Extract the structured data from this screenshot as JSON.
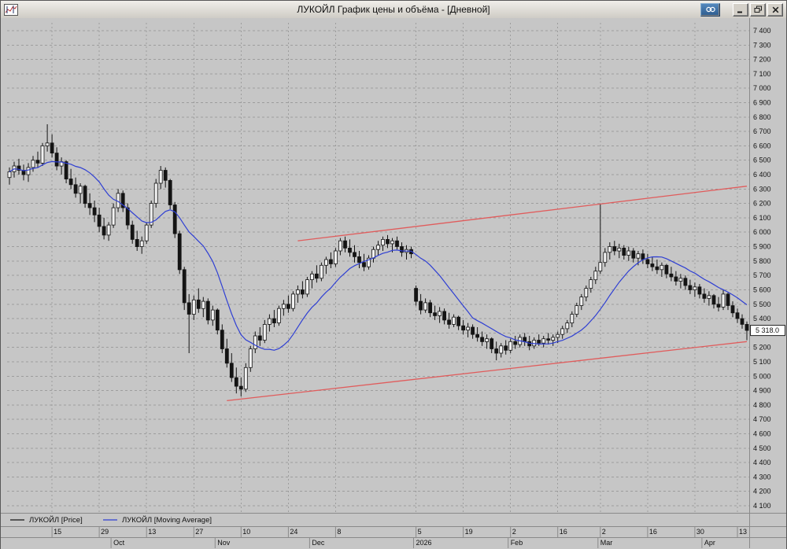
{
  "window": {
    "title": "ЛУКОЙЛ График цены и объёма - [Дневной]"
  },
  "icons": {
    "app": "mini-chart-icon",
    "link": "chain-link-icon",
    "minimize": "minimize-bar-icon",
    "restore": "overlapping-windows-icon",
    "close": "x-cross-icon"
  },
  "legend": {
    "price_label": "ЛУКОЙЛ [Price]",
    "ma_label": "ЛУКОЙЛ [Moving Average]"
  },
  "colors": {
    "chart_bg": "#c6c6c6",
    "grid": "#9d9d9d",
    "candle_up": "#f2f2f2",
    "candle_down": "#141414",
    "ma_line": "#2f3fd3",
    "trendline": "#e05c5c",
    "badge_bg": "#ffffff"
  },
  "chart_data": {
    "type": "candlestick",
    "title": "ЛУКОЙЛ График цены и объёма - [Дневной]",
    "symbol": "ЛУКОЙЛ",
    "timeframe": "Дневной",
    "grid": true,
    "legend_position": "bottom-left",
    "ylim": [
      4100,
      7400
    ],
    "ytick_step": 100,
    "y_tick_labels": [
      "7 400",
      "7 300",
      "7 200",
      "7 100",
      "7 000",
      "6 900",
      "6 800",
      "6 700",
      "6 600",
      "6 500",
      "6 400",
      "6 300",
      "6 200",
      "6 100",
      "6 000",
      "5 900",
      "5 800",
      "5 700",
      "5 600",
      "5 500",
      "5 400",
      "5 300",
      "5 200",
      "5 100",
      "5 000",
      "4 900",
      "4 800",
      "4 700",
      "4 600",
      "4 500",
      "4 400",
      "4 300",
      "4 200",
      "4 100"
    ],
    "last_price": 5318.0,
    "last_price_label": "5 318.0",
    "x_ticks": [
      {
        "label": "15",
        "i": 9
      },
      {
        "label": "29",
        "i": 19
      },
      {
        "label": "13",
        "i": 29
      },
      {
        "label": "27",
        "i": 39
      },
      {
        "label": "10",
        "i": 49
      },
      {
        "label": "24",
        "i": 59
      },
      {
        "label": "8",
        "i": 69
      },
      {
        "label": "5",
        "i": 86
      },
      {
        "label": "19",
        "i": 96
      },
      {
        "label": "2",
        "i": 106
      },
      {
        "label": "16",
        "i": 116
      },
      {
        "label": "2",
        "i": 125
      },
      {
        "label": "16",
        "i": 135
      },
      {
        "label": "30",
        "i": 145
      },
      {
        "label": "13",
        "i": 154
      }
    ],
    "months": [
      {
        "label": "Oct",
        "i": 22
      },
      {
        "label": "Nov",
        "i": 44
      },
      {
        "label": "Dec",
        "i": 64
      },
      {
        "label": "2026",
        "i": 86
      },
      {
        "label": "Feb",
        "i": 106
      },
      {
        "label": "Mar",
        "i": 125
      },
      {
        "label": "Apr",
        "i": 147
      }
    ],
    "trendlines": [
      {
        "i1": 61,
        "p1": 5940,
        "i2": 156,
        "p2": 6320,
        "color": "#e05c5c"
      },
      {
        "i1": 46,
        "p1": 4830,
        "i2": 156,
        "p2": 5240,
        "color": "#e05c5c"
      }
    ],
    "series": [
      {
        "name": "ЛУКОЙЛ [Price]",
        "type": "candlestick",
        "color_up": "#f2f2f2",
        "color_down": "#141414",
        "ohlc": [
          [
            6380,
            6450,
            6330,
            6420
          ],
          [
            6420,
            6490,
            6380,
            6460
          ],
          [
            6460,
            6510,
            6400,
            6430
          ],
          [
            6430,
            6470,
            6360,
            6400
          ],
          [
            6400,
            6480,
            6350,
            6450
          ],
          [
            6450,
            6530,
            6420,
            6500
          ],
          [
            6500,
            6560,
            6450,
            6480
          ],
          [
            6480,
            6620,
            6460,
            6600
          ],
          [
            6600,
            6750,
            6560,
            6620
          ],
          [
            6620,
            6680,
            6520,
            6550
          ],
          [
            6550,
            6590,
            6430,
            6460
          ],
          [
            6460,
            6520,
            6400,
            6490
          ],
          [
            6490,
            6500,
            6340,
            6370
          ],
          [
            6370,
            6440,
            6300,
            6330
          ],
          [
            6330,
            6380,
            6240,
            6270
          ],
          [
            6270,
            6340,
            6200,
            6320
          ],
          [
            6320,
            6330,
            6170,
            6200
          ],
          [
            6200,
            6270,
            6120,
            6170
          ],
          [
            6170,
            6220,
            6070,
            6120
          ],
          [
            6120,
            6170,
            6000,
            6040
          ],
          [
            6040,
            6100,
            5950,
            5980
          ],
          [
            5980,
            6070,
            5940,
            6050
          ],
          [
            6050,
            6200,
            6030,
            6170
          ],
          [
            6170,
            6300,
            6140,
            6270
          ],
          [
            6270,
            6290,
            6140,
            6170
          ],
          [
            6170,
            6200,
            6020,
            6050
          ],
          [
            6050,
            6080,
            5920,
            5950
          ],
          [
            5950,
            6010,
            5870,
            5900
          ],
          [
            5900,
            5970,
            5850,
            5940
          ],
          [
            5940,
            6070,
            5920,
            6050
          ],
          [
            6050,
            6220,
            6030,
            6200
          ],
          [
            6200,
            6370,
            6170,
            6340
          ],
          [
            6340,
            6460,
            6300,
            6430
          ],
          [
            6430,
            6450,
            6310,
            6360
          ],
          [
            6360,
            6370,
            6160,
            6190
          ],
          [
            6190,
            6210,
            5960,
            5990
          ],
          [
            5990,
            6010,
            5710,
            5740
          ],
          [
            5740,
            5760,
            5460,
            5510
          ],
          [
            5510,
            5570,
            5160,
            5430
          ],
          [
            5430,
            5560,
            5390,
            5530
          ],
          [
            5530,
            5610,
            5440,
            5470
          ],
          [
            5470,
            5550,
            5410,
            5520
          ],
          [
            5520,
            5540,
            5360,
            5390
          ],
          [
            5390,
            5490,
            5350,
            5460
          ],
          [
            5460,
            5470,
            5290,
            5320
          ],
          [
            5320,
            5360,
            5160,
            5190
          ],
          [
            5190,
            5260,
            5060,
            5090
          ],
          [
            5090,
            5160,
            4960,
            4990
          ],
          [
            4990,
            5060,
            4880,
            4930
          ],
          [
            4930,
            4990,
            4860,
            4910
          ],
          [
            4910,
            5090,
            4890,
            5060
          ],
          [
            5060,
            5210,
            5030,
            5190
          ],
          [
            5190,
            5310,
            5160,
            5280
          ],
          [
            5280,
            5340,
            5210,
            5250
          ],
          [
            5250,
            5390,
            5230,
            5360
          ],
          [
            5360,
            5430,
            5310,
            5400
          ],
          [
            5400,
            5460,
            5340,
            5370
          ],
          [
            5370,
            5490,
            5350,
            5470
          ],
          [
            5470,
            5530,
            5420,
            5500
          ],
          [
            5500,
            5560,
            5440,
            5470
          ],
          [
            5470,
            5590,
            5450,
            5570
          ],
          [
            5570,
            5630,
            5510,
            5600
          ],
          [
            5600,
            5660,
            5540,
            5570
          ],
          [
            5570,
            5690,
            5550,
            5670
          ],
          [
            5670,
            5730,
            5610,
            5710
          ],
          [
            5710,
            5770,
            5650,
            5680
          ],
          [
            5680,
            5790,
            5660,
            5770
          ],
          [
            5770,
            5830,
            5710,
            5810
          ],
          [
            5810,
            5860,
            5750,
            5780
          ],
          [
            5780,
            5890,
            5760,
            5870
          ],
          [
            5870,
            5960,
            5840,
            5940
          ],
          [
            5940,
            5970,
            5860,
            5890
          ],
          [
            5890,
            5950,
            5830,
            5860
          ],
          [
            5860,
            5910,
            5790,
            5830
          ],
          [
            5830,
            5870,
            5750,
            5790
          ],
          [
            5790,
            5850,
            5730,
            5760
          ],
          [
            5760,
            5840,
            5740,
            5820
          ],
          [
            5820,
            5900,
            5790,
            5880
          ],
          [
            5880,
            5940,
            5840,
            5910
          ],
          [
            5910,
            5970,
            5870,
            5950
          ],
          [
            5950,
            5980,
            5890,
            5920
          ],
          [
            5920,
            5960,
            5860,
            5940
          ],
          [
            5940,
            5970,
            5880,
            5900
          ],
          [
            5900,
            5930,
            5830,
            5860
          ],
          [
            5860,
            5910,
            5810,
            5880
          ],
          [
            5880,
            5900,
            5820,
            5850
          ],
          [
            5610,
            5630,
            5490,
            5520
          ],
          [
            5520,
            5570,
            5430,
            5460
          ],
          [
            5460,
            5540,
            5440,
            5510
          ],
          [
            5510,
            5530,
            5410,
            5440
          ],
          [
            5440,
            5490,
            5390,
            5420
          ],
          [
            5420,
            5480,
            5370,
            5450
          ],
          [
            5450,
            5470,
            5360,
            5390
          ],
          [
            5390,
            5440,
            5330,
            5360
          ],
          [
            5360,
            5430,
            5340,
            5410
          ],
          [
            5410,
            5420,
            5320,
            5350
          ],
          [
            5350,
            5390,
            5290,
            5320
          ],
          [
            5320,
            5370,
            5270,
            5340
          ],
          [
            5340,
            5360,
            5260,
            5290
          ],
          [
            5290,
            5340,
            5240,
            5270
          ],
          [
            5270,
            5310,
            5210,
            5240
          ],
          [
            5240,
            5290,
            5190,
            5260
          ],
          [
            5260,
            5270,
            5160,
            5190
          ],
          [
            5190,
            5240,
            5110,
            5160
          ],
          [
            5160,
            5230,
            5130,
            5210
          ],
          [
            5210,
            5250,
            5150,
            5180
          ],
          [
            5180,
            5260,
            5160,
            5240
          ],
          [
            5240,
            5280,
            5190,
            5220
          ],
          [
            5220,
            5290,
            5200,
            5270
          ],
          [
            5270,
            5300,
            5210,
            5240
          ],
          [
            5240,
            5280,
            5180,
            5210
          ],
          [
            5210,
            5270,
            5190,
            5250
          ],
          [
            5250,
            5290,
            5210,
            5230
          ],
          [
            5230,
            5280,
            5200,
            5260
          ],
          [
            5260,
            5300,
            5220,
            5250
          ],
          [
            5250,
            5290,
            5210,
            5270
          ],
          [
            5270,
            5310,
            5230,
            5290
          ],
          [
            5290,
            5350,
            5260,
            5330
          ],
          [
            5330,
            5390,
            5300,
            5370
          ],
          [
            5370,
            5450,
            5340,
            5430
          ],
          [
            5430,
            5510,
            5410,
            5490
          ],
          [
            5490,
            5570,
            5460,
            5550
          ],
          [
            5550,
            5630,
            5520,
            5610
          ],
          [
            5610,
            5690,
            5580,
            5670
          ],
          [
            5670,
            5760,
            5640,
            5730
          ],
          [
            5730,
            6200,
            5710,
            5790
          ],
          [
            5790,
            5890,
            5760,
            5860
          ],
          [
            5860,
            5930,
            5810,
            5900
          ],
          [
            5900,
            5940,
            5840,
            5870
          ],
          [
            5870,
            5920,
            5820,
            5890
          ],
          [
            5890,
            5910,
            5810,
            5840
          ],
          [
            5840,
            5900,
            5800,
            5870
          ],
          [
            5870,
            5890,
            5790,
            5820
          ],
          [
            5820,
            5870,
            5770,
            5850
          ],
          [
            5850,
            5880,
            5780,
            5810
          ],
          [
            5810,
            5850,
            5750,
            5780
          ],
          [
            5780,
            5830,
            5730,
            5760
          ],
          [
            5760,
            5810,
            5710,
            5740
          ],
          [
            5740,
            5790,
            5690,
            5770
          ],
          [
            5770,
            5780,
            5680,
            5710
          ],
          [
            5710,
            5760,
            5660,
            5690
          ],
          [
            5690,
            5730,
            5630,
            5660
          ],
          [
            5660,
            5710,
            5610,
            5680
          ],
          [
            5680,
            5700,
            5600,
            5630
          ],
          [
            5630,
            5670,
            5570,
            5600
          ],
          [
            5600,
            5650,
            5550,
            5620
          ],
          [
            5620,
            5640,
            5540,
            5570
          ],
          [
            5570,
            5610,
            5510,
            5540
          ],
          [
            5540,
            5590,
            5490,
            5560
          ],
          [
            5560,
            5570,
            5470,
            5500
          ],
          [
            5500,
            5550,
            5450,
            5480
          ],
          [
            5480,
            5600,
            5460,
            5570
          ],
          [
            5570,
            5580,
            5460,
            5490
          ],
          [
            5490,
            5520,
            5410,
            5440
          ],
          [
            5440,
            5470,
            5370,
            5400
          ],
          [
            5400,
            5430,
            5330,
            5360
          ],
          [
            5360,
            5380,
            5250,
            5318
          ]
        ]
      },
      {
        "name": "ЛУКОЙЛ [Moving Average]",
        "type": "sma",
        "period": 13,
        "color": "#2f3fd3"
      }
    ]
  }
}
